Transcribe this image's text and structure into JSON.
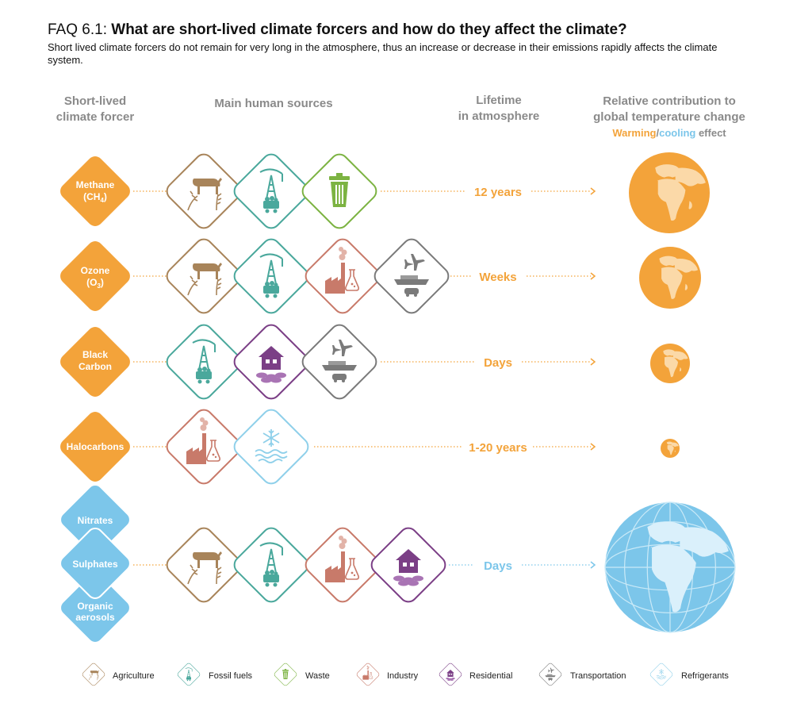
{
  "header": {
    "title_prefix": "FAQ 6.1: ",
    "title_main": "What are short-lived climate forcers and how do they affect the climate?",
    "subtitle": "Short lived climate forcers do not remain for very long in the atmosphere, thus an increase or decrease in their emissions rapidly affects the climate system."
  },
  "columns": {
    "forcer_line1": "Short-lived",
    "forcer_line2": "climate forcer",
    "sources": "Main human sources",
    "lifetime_line1": "Lifetime",
    "lifetime_line2": "in atmosphere",
    "contribution_line1": "Relative contribution to",
    "contribution_line2": "global temperature change",
    "warming_word": "Warming",
    "slash": "/",
    "cooling_word": "cooling",
    "effect_word": " effect"
  },
  "colors": {
    "warming": "#f3a33a",
    "cooling": "#7cc6ea",
    "agriculture": "#a8845a",
    "fossil_fuels": "#4aa89c",
    "waste": "#7cb342",
    "industry": "#c87a6a",
    "residential": "#7b3f86",
    "transportation": "#7a7a7a",
    "refrigerants": "#8fd0ea"
  },
  "rows": [
    {
      "forcer_line1": "Methane",
      "forcer_line2": "(CH",
      "forcer_sub": "4",
      "forcer_close": ")",
      "sources": [
        "agriculture-icon",
        "fossil-fuels-icon",
        "waste-icon"
      ],
      "lifetime": "12 years",
      "effect": "warming"
    },
    {
      "forcer_line1": "Ozone",
      "forcer_line2": "(O",
      "forcer_sub": "3",
      "forcer_close": ")",
      "sources": [
        "agriculture-icon",
        "fossil-fuels-icon",
        "industry-icon",
        "transportation-icon"
      ],
      "lifetime": "Weeks",
      "effect": "warming"
    },
    {
      "forcer_line1": "Black",
      "forcer_line2": "Carbon",
      "sources": [
        "fossil-fuels-icon",
        "residential-icon",
        "transportation-icon"
      ],
      "lifetime": "Days",
      "effect": "warming"
    },
    {
      "forcer_line1": "Halocarbons",
      "sources": [
        "industry-icon",
        "refrigerants-icon"
      ],
      "lifetime": "1-20 years",
      "effect": "warming"
    },
    {
      "forcers": [
        "Nitrates",
        "Sulphates",
        "Organic aerosols"
      ],
      "forcer_org1": "Organic",
      "forcer_org2": "aerosols",
      "sources": [
        "agriculture-icon",
        "fossil-fuels-icon",
        "industry-icon",
        "residential-icon"
      ],
      "lifetime": "Days",
      "effect": "cooling"
    }
  ],
  "legend": [
    {
      "icon": "agriculture-icon",
      "label": "Agriculture"
    },
    {
      "icon": "fossil-fuels-icon",
      "label": "Fossil fuels"
    },
    {
      "icon": "waste-icon",
      "label": "Waste"
    },
    {
      "icon": "industry-icon",
      "label": "Industry"
    },
    {
      "icon": "residential-icon",
      "label": "Residential"
    },
    {
      "icon": "transportation-icon",
      "label": "Transportation"
    },
    {
      "icon": "refrigerants-icon",
      "label": "Refrigerants"
    }
  ]
}
